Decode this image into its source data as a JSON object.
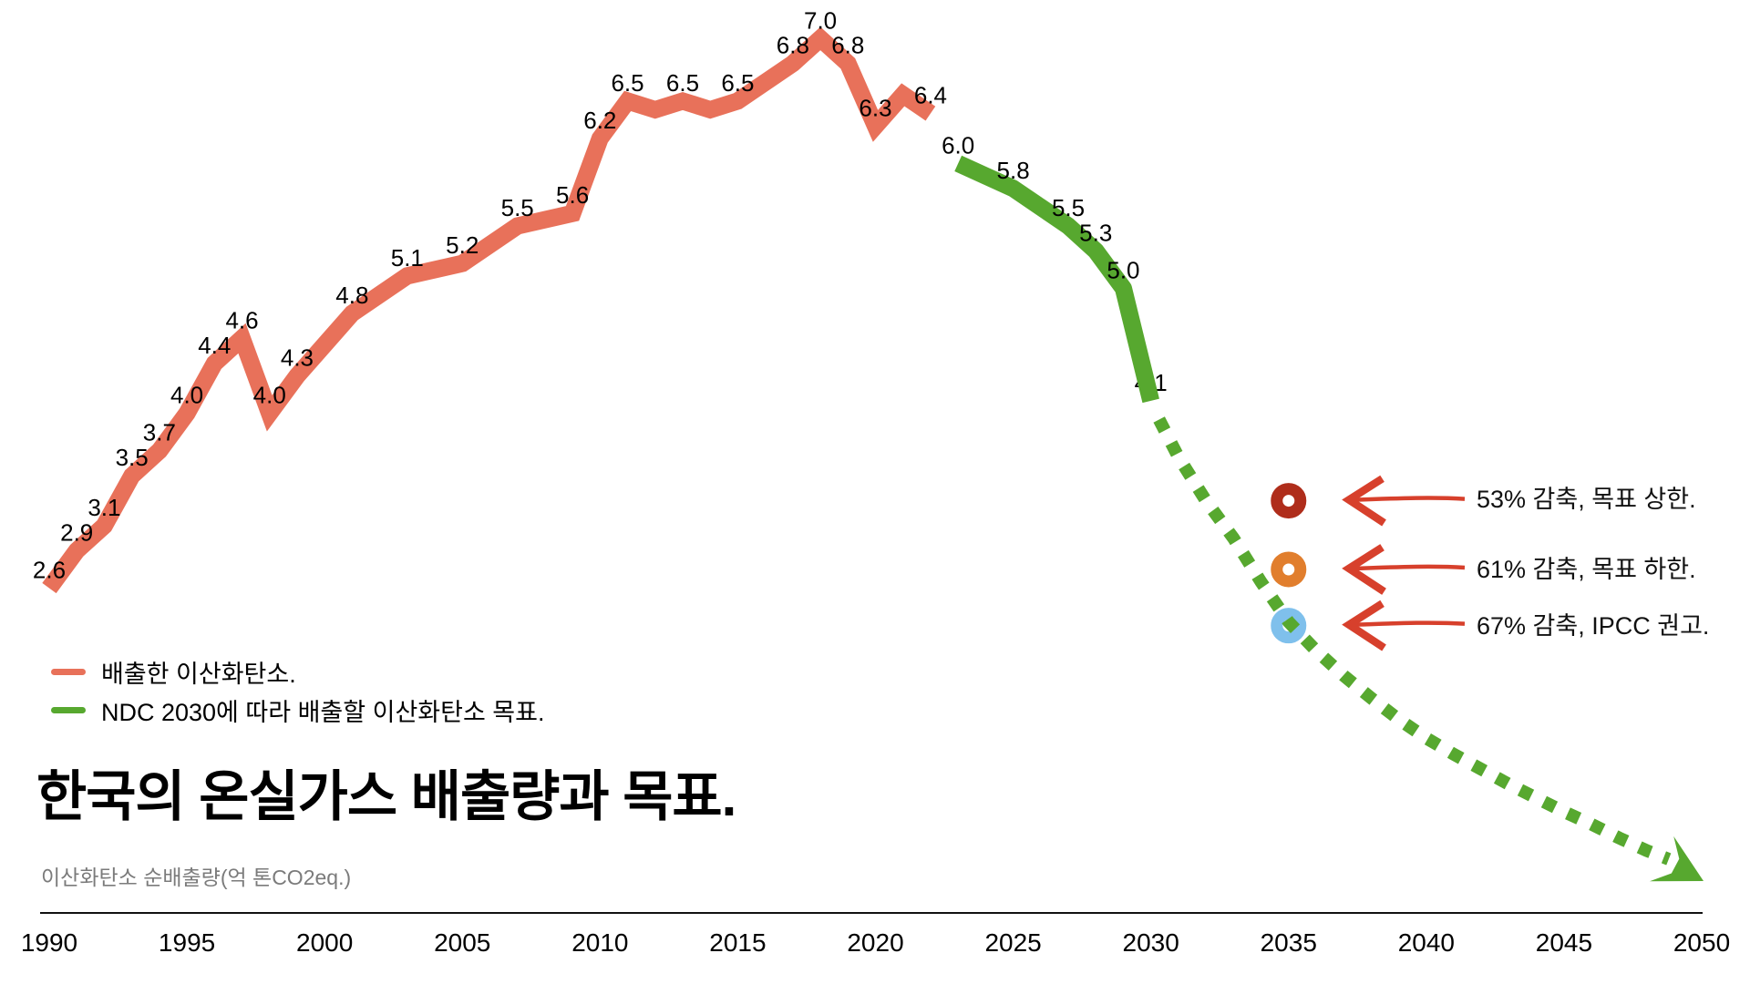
{
  "title": "한국의 온실가스 배출량과 목표.",
  "subtitle": "이산화탄소 순배출량(억 톤CO2eq.)",
  "colors": {
    "emissions": "#E8715A",
    "target": "#57A82F",
    "annotation_arrow": "#D7402C",
    "axis": "#111111",
    "marker_upper": "#AF2D1B",
    "marker_lower": "#E17E2D",
    "marker_ipcc": "#7FC0EC"
  },
  "legend": [
    {
      "label": "배출한 이산화탄소.",
      "color": "#E8715A"
    },
    {
      "label": "NDC 2030에 따라 배출할 이산화탄소 목표.",
      "color": "#57A82F"
    }
  ],
  "annotations": [
    {
      "label": "53% 감축, 목표 상한.",
      "marker": "donut",
      "marker_color": "#AF2D1B",
      "year": 2035,
      "value": 3.3
    },
    {
      "label": "61% 감축, 목표 하한.",
      "marker": "donut",
      "marker_color": "#E17E2D",
      "year": 2035,
      "value": 2.75
    },
    {
      "label": "67% 감축, IPCC 권고.",
      "marker": "donut",
      "marker_color": "#7FC0EC",
      "year": 2035,
      "value": 2.3
    }
  ],
  "chart_data": {
    "type": "line",
    "title": "한국의 온실가스 배출량과 목표.",
    "ylabel": "이산화탄소 순배출량(억 톤CO2eq.)",
    "x_axis": {
      "range": [
        1990,
        2050
      ],
      "ticks": [
        1990,
        1995,
        2000,
        2005,
        2010,
        2015,
        2020,
        2025,
        2030,
        2035,
        2040,
        2045,
        2050
      ]
    },
    "y_axis": {
      "range": [
        0,
        7.3
      ],
      "visible": false
    },
    "series": [
      {
        "name": "배출한 이산화탄소.",
        "color": "#E8715A",
        "style": "solid",
        "points": [
          {
            "x": 1990,
            "y": 2.6,
            "label": "2.6"
          },
          {
            "x": 1991,
            "y": 2.9,
            "label": "2.9"
          },
          {
            "x": 1992,
            "y": 3.1,
            "label": "3.1"
          },
          {
            "x": 1993,
            "y": 3.5,
            "label": "3.5"
          },
          {
            "x": 1994,
            "y": 3.7,
            "label": "3.7"
          },
          {
            "x": 1995,
            "y": 4.0,
            "label": "4.0"
          },
          {
            "x": 1996,
            "y": 4.4,
            "label": "4.4"
          },
          {
            "x": 1997,
            "y": 4.6,
            "label": "4.6"
          },
          {
            "x": 1998,
            "y": 4.0,
            "label": "4.0"
          },
          {
            "x": 1999,
            "y": 4.3,
            "label": "4.3"
          },
          {
            "x": 2001,
            "y": 4.8,
            "label": "4.8"
          },
          {
            "x": 2003,
            "y": 5.1,
            "label": "5.1"
          },
          {
            "x": 2005,
            "y": 5.2,
            "label": "5.2"
          },
          {
            "x": 2007,
            "y": 5.5,
            "label": "5.5"
          },
          {
            "x": 2009,
            "y": 5.6,
            "label": "5.6"
          },
          {
            "x": 2010,
            "y": 6.2,
            "label": "6.2"
          },
          {
            "x": 2011,
            "y": 6.5,
            "label": "6.5"
          },
          {
            "x": 2012,
            "y": 6.43
          },
          {
            "x": 2013,
            "y": 6.5,
            "label": "6.5"
          },
          {
            "x": 2014,
            "y": 6.43
          },
          {
            "x": 2015,
            "y": 6.5,
            "label": "6.5"
          },
          {
            "x": 2017,
            "y": 6.8,
            "label": "6.8"
          },
          {
            "x": 2018,
            "y": 7.0,
            "label": "7.0"
          },
          {
            "x": 2019,
            "y": 6.8,
            "label": "6.8"
          },
          {
            "x": 2020,
            "y": 6.3,
            "label": "6.3"
          },
          {
            "x": 2021,
            "y": 6.55
          },
          {
            "x": 2022,
            "y": 6.4,
            "label": "6.4"
          }
        ]
      },
      {
        "name": "NDC 2030에 따라 배출할 이산화탄소 목표.",
        "color": "#57A82F",
        "style": "solid",
        "points": [
          {
            "x": 2023,
            "y": 6.0,
            "label": "6.0"
          },
          {
            "x": 2024,
            "y": 5.9
          },
          {
            "x": 2025,
            "y": 5.8,
            "label": "5.8"
          },
          {
            "x": 2026,
            "y": 5.65
          },
          {
            "x": 2027,
            "y": 5.5,
            "label": "5.5"
          },
          {
            "x": 2028,
            "y": 5.3,
            "label": "5.3"
          },
          {
            "x": 2029,
            "y": 5.0,
            "label": "5.0"
          },
          {
            "x": 2030,
            "y": 4.1,
            "label": "4.1",
            "label_behind": true
          }
        ]
      },
      {
        "name": "",
        "color": "#57A82F",
        "style": "dotted",
        "arrow_end": true,
        "points": [
          {
            "x": 2030.3,
            "y": 3.95
          },
          {
            "x": 2031,
            "y": 3.65
          },
          {
            "x": 2032,
            "y": 3.3
          },
          {
            "x": 2033,
            "y": 3.0
          },
          {
            "x": 2034,
            "y": 2.65
          },
          {
            "x": 2035,
            "y": 2.33
          },
          {
            "x": 2036,
            "y": 2.1
          },
          {
            "x": 2037,
            "y": 1.9
          },
          {
            "x": 2038,
            "y": 1.72
          },
          {
            "x": 2039,
            "y": 1.55
          },
          {
            "x": 2040,
            "y": 1.4
          },
          {
            "x": 2041,
            "y": 1.27
          },
          {
            "x": 2042,
            "y": 1.15
          },
          {
            "x": 2043,
            "y": 1.03
          },
          {
            "x": 2044,
            "y": 0.92
          },
          {
            "x": 2045,
            "y": 0.81
          },
          {
            "x": 2046,
            "y": 0.71
          },
          {
            "x": 2047,
            "y": 0.6
          },
          {
            "x": 2048,
            "y": 0.5
          },
          {
            "x": 2048.8,
            "y": 0.43
          }
        ]
      }
    ]
  }
}
